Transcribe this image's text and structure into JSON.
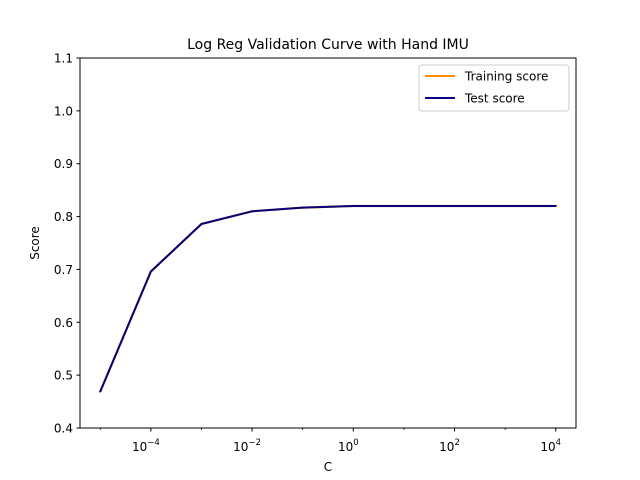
{
  "chart_data": {
    "type": "line",
    "title": "Log Reg Validation Curve with Hand IMU",
    "xlabel": "C",
    "ylabel": "Score",
    "xscale": "log",
    "x": [
      1e-05,
      0.0001,
      0.001,
      0.01,
      0.1,
      1,
      10,
      100,
      1000,
      10000
    ],
    "xticks": [
      0.0001,
      0.01,
      1,
      100,
      10000
    ],
    "xtick_labels": [
      {
        "base": "10",
        "exp": "−4"
      },
      {
        "base": "10",
        "exp": "−2"
      },
      {
        "base": "10",
        "exp": "0"
      },
      {
        "base": "10",
        "exp": "2"
      },
      {
        "base": "10",
        "exp": "4"
      }
    ],
    "ylim": [
      0.4,
      1.1
    ],
    "yticks": [
      "0.4",
      "0.5",
      "0.6",
      "0.7",
      "0.8",
      "0.9",
      "1.0",
      "1.1"
    ],
    "grid": false,
    "legend_position": "top-right",
    "series": [
      {
        "name": "Training score",
        "color": "#ff8c00",
        "values": [
          0.469,
          0.696,
          0.786,
          0.81,
          0.817,
          0.82,
          0.82,
          0.82,
          0.82,
          0.82
        ]
      },
      {
        "name": "Test score",
        "color": "#000080",
        "values": [
          0.469,
          0.696,
          0.786,
          0.81,
          0.817,
          0.82,
          0.82,
          0.82,
          0.82,
          0.82
        ]
      }
    ]
  }
}
